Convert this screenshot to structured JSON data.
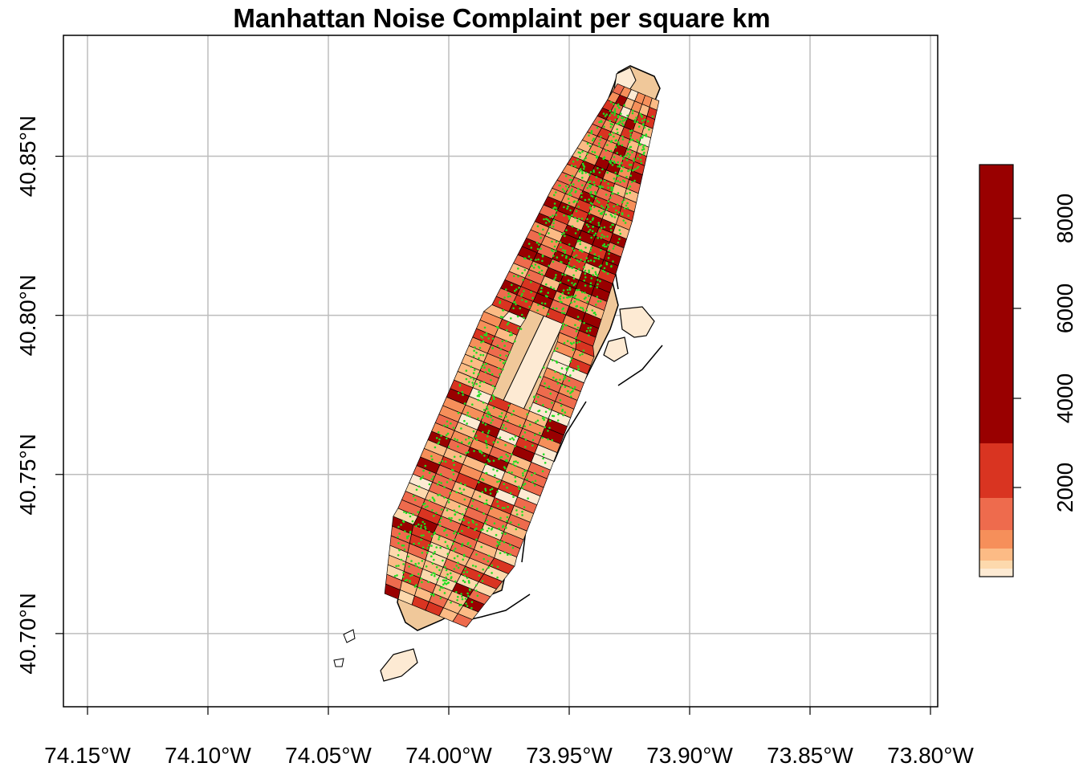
{
  "title": "Manhattan Noise Complaint per square km",
  "x_ticks": [
    {
      "value": -74.15,
      "label": "74.15°W"
    },
    {
      "value": -74.1,
      "label": "74.10°W"
    },
    {
      "value": -74.05,
      "label": "74.05°W"
    },
    {
      "value": -74.0,
      "label": "74.00°W"
    },
    {
      "value": -73.95,
      "label": "73.95°W"
    },
    {
      "value": -73.9,
      "label": "73.90°W"
    },
    {
      "value": -73.85,
      "label": "73.85°W"
    },
    {
      "value": -73.8,
      "label": "73.80°W"
    }
  ],
  "y_ticks": [
    {
      "value": 40.7,
      "label": "40.70°N"
    },
    {
      "value": 40.75,
      "label": "40.75°N"
    },
    {
      "value": 40.8,
      "label": "40.80°N"
    },
    {
      "value": 40.85,
      "label": "40.85°N"
    }
  ],
  "legend": {
    "ticks": [
      {
        "value": 2000,
        "label": "2000"
      },
      {
        "value": 4000,
        "label": "4000"
      },
      {
        "value": 6000,
        "label": "6000"
      },
      {
        "value": 8000,
        "label": "8000"
      }
    ],
    "range": [
      0,
      9300
    ],
    "breaks": [
      {
        "from": 0,
        "to": 150,
        "color": "#fdead3"
      },
      {
        "from": 150,
        "to": 300,
        "color": "#fdd9ad"
      },
      {
        "from": 300,
        "to": 700,
        "color": "#fcbb85"
      },
      {
        "from": 700,
        "to": 1200,
        "color": "#f68f5a"
      },
      {
        "from": 1200,
        "to": 2000,
        "color": "#ee6b4d"
      },
      {
        "from": 2000,
        "to": 3000,
        "color": "#d93421"
      },
      {
        "from": 3000,
        "to": 9300,
        "color": "#990000"
      }
    ]
  },
  "chart_data": {
    "type": "choropleth",
    "title": "Manhattan Noise Complaint per square km",
    "xlim": [
      -74.16,
      -73.797
    ],
    "ylim": [
      40.677,
      40.888
    ],
    "grid": true,
    "legend_position": "right",
    "overlay": "complaint points in green"
  }
}
